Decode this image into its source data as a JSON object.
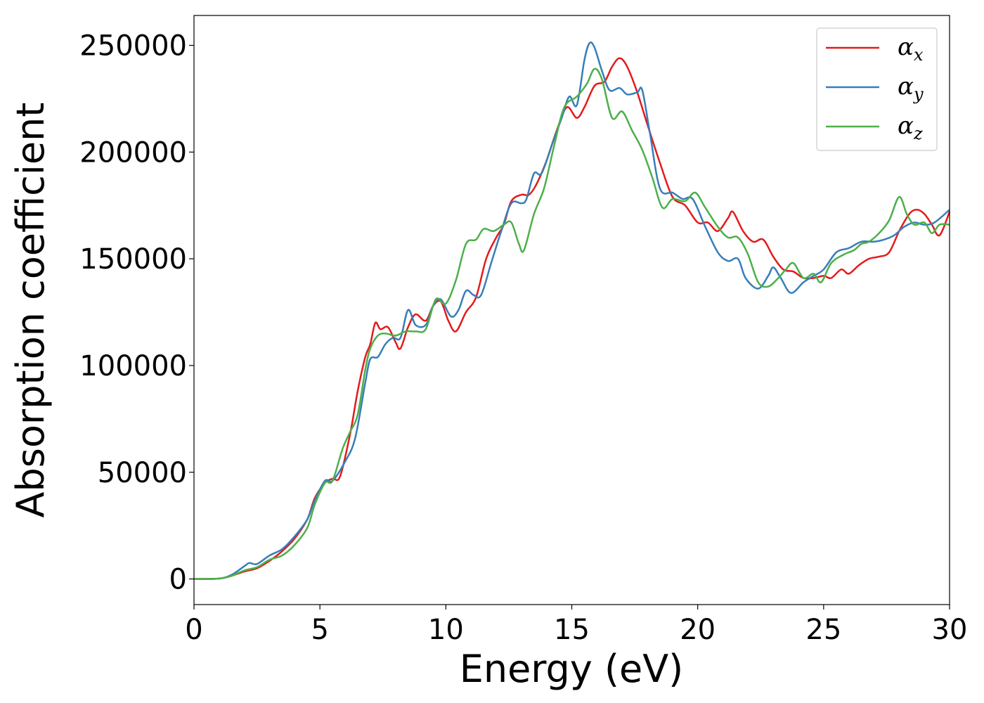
{
  "chart_data": {
    "type": "line",
    "title": "",
    "xlabel": "Energy (eV)",
    "ylabel": "Absorption coefficient",
    "xlim": [
      0,
      30
    ],
    "ylim": [
      -12000,
      264000
    ],
    "xticks": [
      0,
      5,
      10,
      15,
      20,
      25,
      30
    ],
    "xtick_labels": [
      "0",
      "5",
      "10",
      "15",
      "20",
      "25",
      "30"
    ],
    "yticks": [
      0,
      50000,
      100000,
      150000,
      200000,
      250000
    ],
    "ytick_labels": [
      "0",
      "50000",
      "100000",
      "150000",
      "200000",
      "250000"
    ],
    "grid": false,
    "legend_position": "top-right",
    "series": [
      {
        "name": "α_x",
        "symbol": "α",
        "subscript": "x",
        "color": "#e41a1c",
        "points": [
          [
            0,
            0
          ],
          [
            1,
            200
          ],
          [
            1.5,
            1500
          ],
          [
            2,
            3500
          ],
          [
            2.5,
            5000
          ],
          [
            3,
            8500
          ],
          [
            3.5,
            13000
          ],
          [
            4,
            19000
          ],
          [
            4.5,
            28000
          ],
          [
            4.8,
            38000
          ],
          [
            5.2,
            45000
          ],
          [
            5.5,
            47000
          ],
          [
            5.8,
            48000
          ],
          [
            6.2,
            68000
          ],
          [
            6.5,
            88000
          ],
          [
            6.8,
            104000
          ],
          [
            7.0,
            110000
          ],
          [
            7.2,
            120000
          ],
          [
            7.4,
            117000
          ],
          [
            7.7,
            118000
          ],
          [
            8.0,
            111000
          ],
          [
            8.2,
            108000
          ],
          [
            8.5,
            118000
          ],
          [
            8.8,
            124000
          ],
          [
            9.2,
            121000
          ],
          [
            9.5,
            128000
          ],
          [
            9.8,
            130000
          ],
          [
            10.1,
            121000
          ],
          [
            10.4,
            116000
          ],
          [
            10.8,
            125000
          ],
          [
            11.2,
            132000
          ],
          [
            11.6,
            150000
          ],
          [
            12,
            160000
          ],
          [
            12.3,
            166000
          ],
          [
            12.6,
            177000
          ],
          [
            13,
            180000
          ],
          [
            13.3,
            180000
          ],
          [
            13.6,
            185000
          ],
          [
            14,
            196000
          ],
          [
            14.4,
            210000
          ],
          [
            14.8,
            221000
          ],
          [
            15.2,
            216000
          ],
          [
            15.5,
            221000
          ],
          [
            15.9,
            231000
          ],
          [
            16.3,
            233000
          ],
          [
            16.6,
            240000
          ],
          [
            16.9,
            244000
          ],
          [
            17.2,
            240000
          ],
          [
            17.6,
            228000
          ],
          [
            18,
            213000
          ],
          [
            18.5,
            195000
          ],
          [
            19,
            179000
          ],
          [
            19.5,
            175000
          ],
          [
            20,
            167000
          ],
          [
            20.4,
            167000
          ],
          [
            20.8,
            163000
          ],
          [
            21.2,
            169000
          ],
          [
            21.4,
            172000
          ],
          [
            21.8,
            163000
          ],
          [
            22.2,
            158000
          ],
          [
            22.6,
            159000
          ],
          [
            23,
            151000
          ],
          [
            23.4,
            145000
          ],
          [
            23.8,
            144000
          ],
          [
            24.2,
            141000
          ],
          [
            24.6,
            141000
          ],
          [
            25,
            142000
          ],
          [
            25.3,
            141000
          ],
          [
            25.7,
            145000
          ],
          [
            26.0,
            143000
          ],
          [
            26.4,
            147000
          ],
          [
            26.8,
            150000
          ],
          [
            27.2,
            151000
          ],
          [
            27.6,
            153000
          ],
          [
            28,
            163000
          ],
          [
            28.4,
            171000
          ],
          [
            28.7,
            173000
          ],
          [
            29.0,
            171000
          ],
          [
            29.3,
            166000
          ],
          [
            29.6,
            161000
          ],
          [
            30,
            172000
          ]
        ]
      },
      {
        "name": "α_y",
        "symbol": "α",
        "subscript": "y",
        "color": "#377eb8",
        "points": [
          [
            0,
            0
          ],
          [
            1,
            200
          ],
          [
            1.5,
            2000
          ],
          [
            2,
            6000
          ],
          [
            2.2,
            7500
          ],
          [
            2.5,
            7000
          ],
          [
            3,
            11000
          ],
          [
            3.5,
            14000
          ],
          [
            4,
            20000
          ],
          [
            4.5,
            28000
          ],
          [
            4.8,
            37000
          ],
          [
            5.2,
            46000
          ],
          [
            5.5,
            46000
          ],
          [
            6,
            55000
          ],
          [
            6.4,
            66000
          ],
          [
            6.8,
            92000
          ],
          [
            7.0,
            103000
          ],
          [
            7.3,
            104000
          ],
          [
            7.6,
            110000
          ],
          [
            7.9,
            113000
          ],
          [
            8.2,
            113000
          ],
          [
            8.5,
            126000
          ],
          [
            8.8,
            119000
          ],
          [
            9.2,
            119000
          ],
          [
            9.5,
            128000
          ],
          [
            9.8,
            131000
          ],
          [
            10.2,
            123000
          ],
          [
            10.5,
            126000
          ],
          [
            10.8,
            135000
          ],
          [
            11.1,
            133000
          ],
          [
            11.4,
            133000
          ],
          [
            11.8,
            148000
          ],
          [
            12.2,
            163000
          ],
          [
            12.6,
            176000
          ],
          [
            13,
            176000
          ],
          [
            13.2,
            178000
          ],
          [
            13.5,
            190000
          ],
          [
            13.8,
            190000
          ],
          [
            14.2,
            203000
          ],
          [
            14.6,
            216000
          ],
          [
            14.9,
            226000
          ],
          [
            15.2,
            222000
          ],
          [
            15.5,
            243000
          ],
          [
            15.7,
            251000
          ],
          [
            15.9,
            249000
          ],
          [
            16.2,
            238000
          ],
          [
            16.5,
            229000
          ],
          [
            16.9,
            230000
          ],
          [
            17.2,
            227000
          ],
          [
            17.6,
            228000
          ],
          [
            17.8,
            229000
          ],
          [
            18.1,
            209000
          ],
          [
            18.5,
            183000
          ],
          [
            19,
            181000
          ],
          [
            19.4,
            178000
          ],
          [
            19.8,
            178000
          ],
          [
            20.3,
            165000
          ],
          [
            20.8,
            153000
          ],
          [
            21.2,
            149000
          ],
          [
            21.6,
            150000
          ],
          [
            21.9,
            141000
          ],
          [
            22.4,
            136000
          ],
          [
            22.8,
            142000
          ],
          [
            23.0,
            146000
          ],
          [
            23.3,
            141000
          ],
          [
            23.7,
            134000
          ],
          [
            24.2,
            139000
          ],
          [
            24.6,
            142000
          ],
          [
            25,
            145000
          ],
          [
            25.5,
            153000
          ],
          [
            26,
            155000
          ],
          [
            26.5,
            158000
          ],
          [
            27,
            158000
          ],
          [
            27.4,
            159000
          ],
          [
            27.8,
            161000
          ],
          [
            28.2,
            165000
          ],
          [
            28.6,
            167000
          ],
          [
            29,
            166000
          ],
          [
            29.4,
            167000
          ],
          [
            30,
            173000
          ]
        ]
      },
      {
        "name": "α_z",
        "symbol": "α",
        "subscript": "z",
        "color": "#4daf4a",
        "points": [
          [
            0,
            0
          ],
          [
            1,
            200
          ],
          [
            1.5,
            1500
          ],
          [
            2,
            4000
          ],
          [
            2.5,
            5500
          ],
          [
            3,
            9000
          ],
          [
            3.5,
            11000
          ],
          [
            4,
            16000
          ],
          [
            4.5,
            24000
          ],
          [
            4.8,
            35000
          ],
          [
            5.2,
            45000
          ],
          [
            5.5,
            46000
          ],
          [
            5.9,
            61000
          ],
          [
            6.2,
            69000
          ],
          [
            6.5,
            77000
          ],
          [
            6.8,
            98000
          ],
          [
            7.0,
            108000
          ],
          [
            7.3,
            114000
          ],
          [
            7.6,
            115000
          ],
          [
            8.0,
            114000
          ],
          [
            8.4,
            116000
          ],
          [
            8.8,
            116000
          ],
          [
            9.2,
            117000
          ],
          [
            9.6,
            131000
          ],
          [
            10.0,
            129000
          ],
          [
            10.4,
            140000
          ],
          [
            10.8,
            157000
          ],
          [
            11.2,
            159000
          ],
          [
            11.5,
            164000
          ],
          [
            11.9,
            163000
          ],
          [
            12.3,
            166000
          ],
          [
            12.6,
            167000
          ],
          [
            12.9,
            157000
          ],
          [
            13.1,
            154000
          ],
          [
            13.5,
            171000
          ],
          [
            13.9,
            183000
          ],
          [
            14.3,
            203000
          ],
          [
            14.7,
            221000
          ],
          [
            15.2,
            226000
          ],
          [
            15.6,
            232000
          ],
          [
            15.9,
            239000
          ],
          [
            16.2,
            234000
          ],
          [
            16.6,
            216000
          ],
          [
            17,
            219000
          ],
          [
            17.4,
            210000
          ],
          [
            17.8,
            201000
          ],
          [
            18.2,
            188000
          ],
          [
            18.6,
            174000
          ],
          [
            19,
            178000
          ],
          [
            19.5,
            177000
          ],
          [
            19.9,
            181000
          ],
          [
            20.3,
            174000
          ],
          [
            20.8,
            165000
          ],
          [
            21.2,
            160000
          ],
          [
            21.6,
            160000
          ],
          [
            22.0,
            152000
          ],
          [
            22.4,
            139000
          ],
          [
            22.8,
            137000
          ],
          [
            23.2,
            141000
          ],
          [
            23.5,
            145000
          ],
          [
            23.8,
            148000
          ],
          [
            24.2,
            141000
          ],
          [
            24.6,
            143000
          ],
          [
            24.9,
            139000
          ],
          [
            25.3,
            148000
          ],
          [
            25.8,
            152000
          ],
          [
            26.2,
            154000
          ],
          [
            26.5,
            157000
          ],
          [
            26.8,
            158000
          ],
          [
            27.2,
            162000
          ],
          [
            27.6,
            168000
          ],
          [
            28,
            179000
          ],
          [
            28.3,
            171000
          ],
          [
            28.6,
            166000
          ],
          [
            29.0,
            167000
          ],
          [
            29.3,
            162000
          ],
          [
            29.6,
            166000
          ],
          [
            30,
            166000
          ]
        ]
      }
    ]
  }
}
